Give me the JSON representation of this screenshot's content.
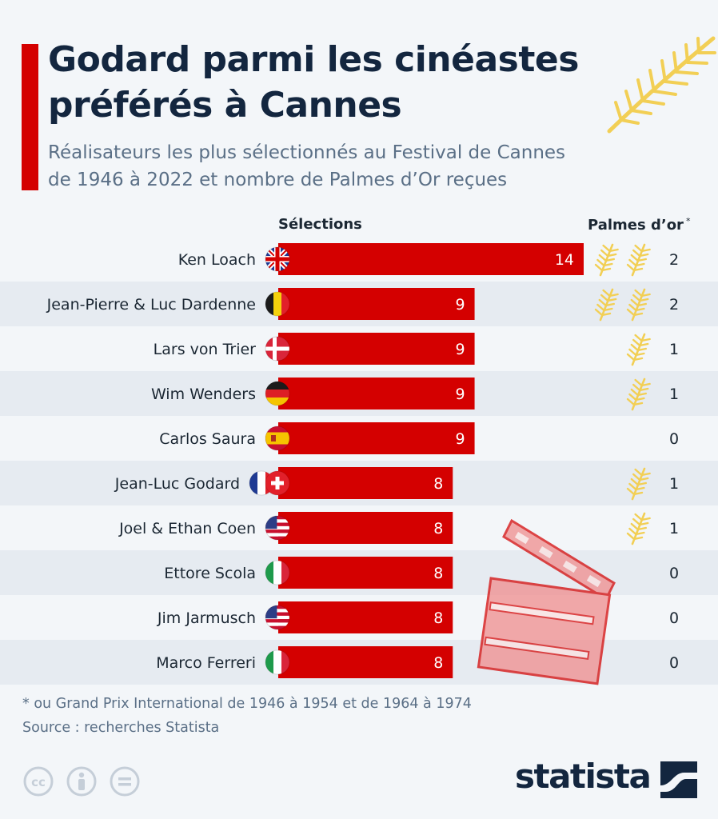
{
  "header": {
    "title_line1": "Godard parmi les cinéastes",
    "title_line2": "préférés à Cannes",
    "subtitle_line1": "Réalisateurs les plus sélectionnés au Festival de Cannes",
    "subtitle_line2": "de 1946 à 2022 et nombre de Palmes d’Or reçues",
    "col_selections": "Sélections",
    "col_palmes": "Palmes d’or",
    "col_palmes_star": "*"
  },
  "chart_data": {
    "type": "bar",
    "orientation": "horizontal",
    "xlabel": "Sélections",
    "xlim": [
      0,
      14
    ],
    "grid": false,
    "categories": [
      "Ken Loach",
      "Jean-Pierre & Luc Dardenne",
      "Lars von Trier",
      "Wim Wenders",
      "Carlos Saura",
      "Jean-Luc Godard",
      "Joel & Ethan Coen",
      "Ettore Scola",
      "Jim Jarmusch",
      "Marco Ferreri"
    ],
    "values": [
      14,
      9,
      9,
      9,
      9,
      8,
      8,
      8,
      8,
      8
    ],
    "palmes": [
      2,
      2,
      1,
      1,
      0,
      1,
      1,
      0,
      0,
      0
    ],
    "flags": [
      [
        "uk"
      ],
      [
        "be"
      ],
      [
        "dk"
      ],
      [
        "de"
      ],
      [
        "es"
      ],
      [
        "fr",
        "ch"
      ],
      [
        "us"
      ],
      [
        "it"
      ],
      [
        "us"
      ],
      [
        "it"
      ]
    ]
  },
  "colors": {
    "bar": "#d40000",
    "palm": "#f2cf55",
    "title": "#13263f",
    "stripe": "#e6ebf1"
  },
  "footer": {
    "footnote": "* ou Grand Prix International de 1946 à 1954 et de 1964 à 1974",
    "source": "Source : recherches Statista",
    "logo": "statista",
    "license_icons": [
      "cc-icon",
      "attribution-icon",
      "no-derivatives-icon"
    ]
  }
}
